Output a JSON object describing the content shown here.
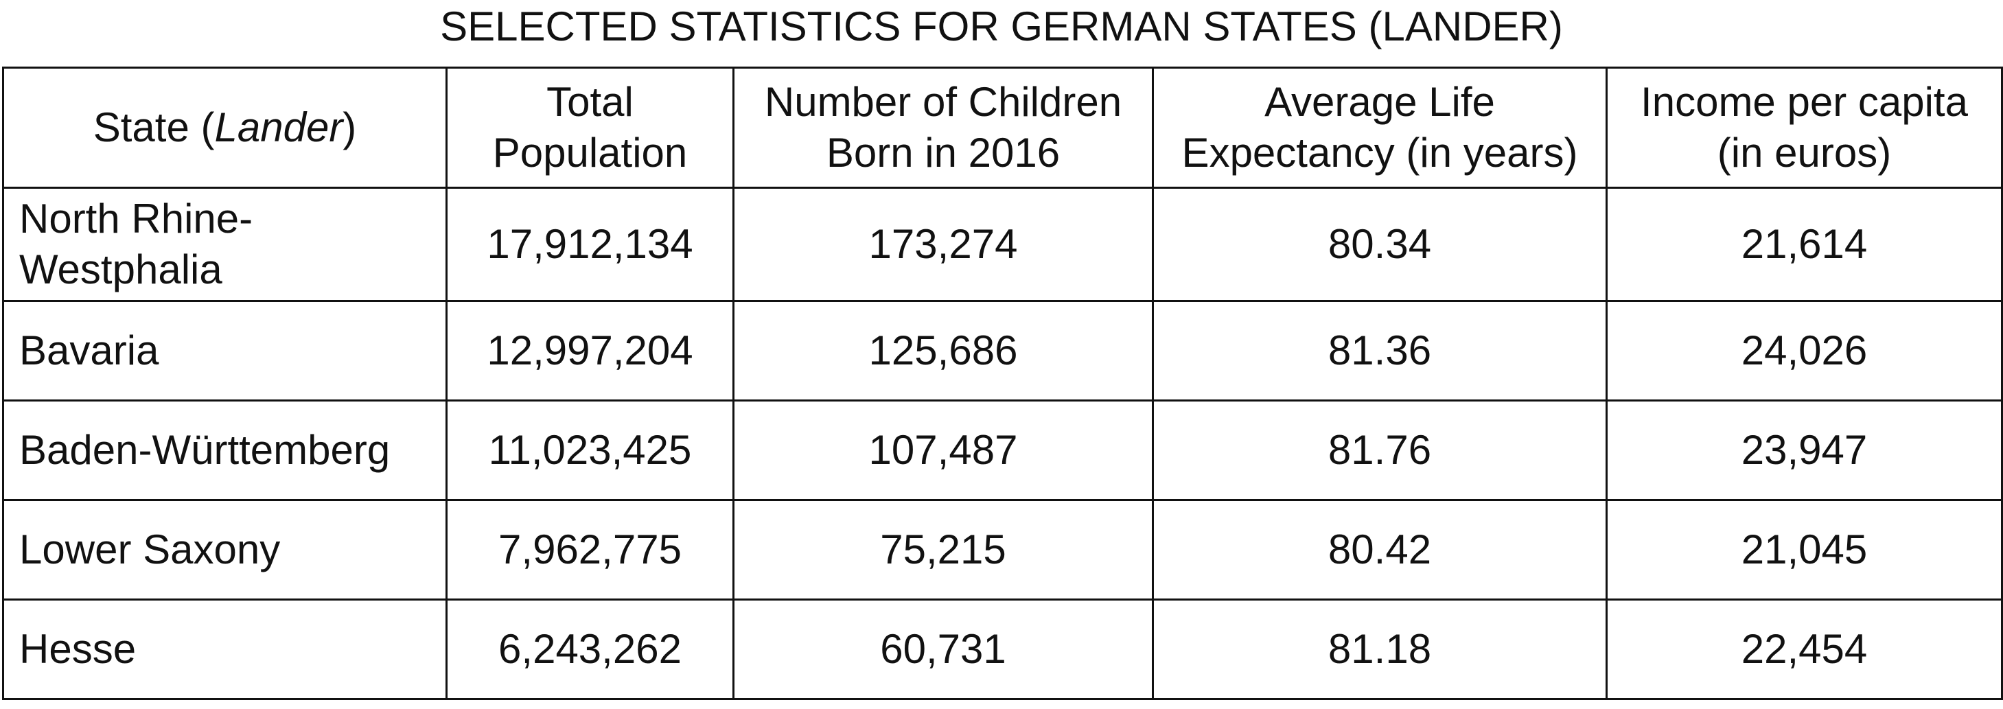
{
  "title": "SELECTED STATISTICS FOR GERMAN STATES (LANDER)",
  "table": {
    "headers": {
      "state": {
        "prefix": "State (",
        "italic": "Lander",
        "suffix": ")"
      },
      "population": [
        "Total",
        "Population"
      ],
      "children": [
        "Number of Children",
        "Born in 2016"
      ],
      "life_expectancy": [
        "Average Life",
        "Expectancy (in years)"
      ],
      "income": [
        "Income per capita",
        "(in euros)"
      ]
    },
    "rows": [
      {
        "state_lines": [
          "North Rhine-",
          "Westphalia"
        ],
        "population": "17,912,134",
        "children": "173,274",
        "life_expectancy": "80.34",
        "income": "21,614"
      },
      {
        "state_lines": [
          "Bavaria"
        ],
        "population": "12,997,204",
        "children": "125,686",
        "life_expectancy": "81.36",
        "income": "24,026"
      },
      {
        "state_lines": [
          "Baden-Württemberg"
        ],
        "population": "11,023,425",
        "children": "107,487",
        "life_expectancy": "81.76",
        "income": "23,947"
      },
      {
        "state_lines": [
          "Lower Saxony"
        ],
        "population": "7,962,775",
        "children": "75,215",
        "life_expectancy": "80.42",
        "income": "21,045"
      },
      {
        "state_lines": [
          "Hesse"
        ],
        "population": "6,243,262",
        "children": "60,731",
        "life_expectancy": "81.18",
        "income": "22,454"
      }
    ]
  }
}
